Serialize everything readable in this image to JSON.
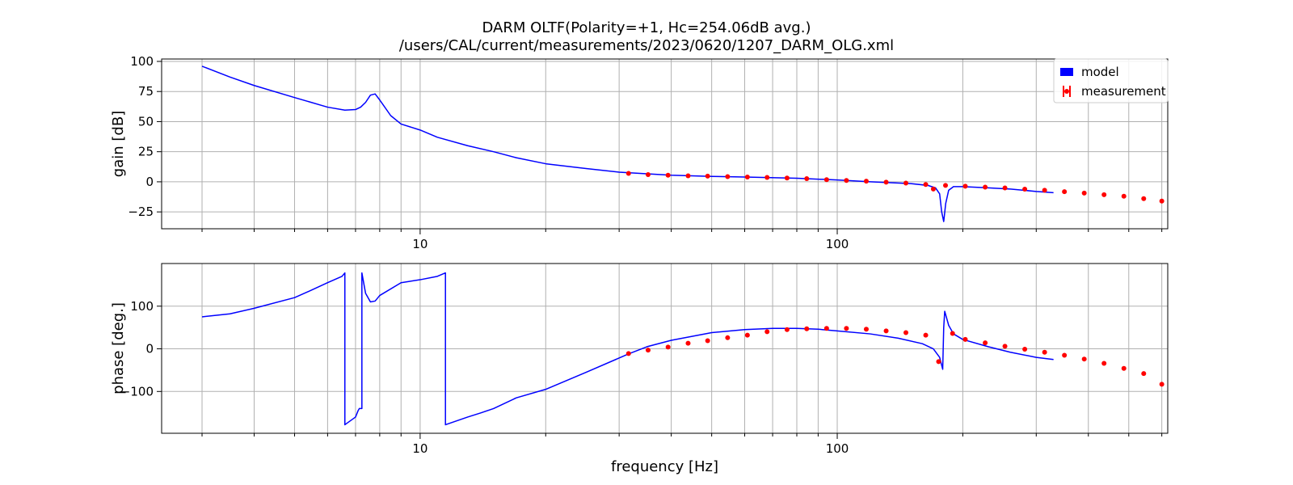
{
  "chart_data": {
    "title": "DARM OLTF(Polarity=+1,  Hc=254.06dB avg.)",
    "subtitle": "/users/CAL/current/measurements/2023/0620/1207_DARM_OLG.xml",
    "xlabel": "frequency [Hz]",
    "xscale": "log",
    "xlim": [
      2.4,
      620
    ],
    "x_major_ticks": [
      10,
      100
    ],
    "x_tick_labels": [
      "10",
      "100"
    ],
    "grid": true,
    "legend": {
      "placement": "top-right",
      "entries": [
        {
          "label": "model",
          "color": "#0000ff",
          "marker": "patch"
        },
        {
          "label": "measurement",
          "color": "#ff0000",
          "marker": "errorbar-point"
        }
      ]
    },
    "panels": [
      {
        "id": "gain",
        "type": "line",
        "ylabel": "gain [dB]",
        "ylim": [
          -39,
          102
        ],
        "yticks": [
          100,
          75,
          50,
          25,
          0,
          -25
        ],
        "ytick_labels": [
          "100",
          "75",
          "50",
          "25",
          "0",
          "−25"
        ],
        "series": [
          {
            "name": "model",
            "type": "line",
            "color": "#0000ff",
            "x": [
              3.0,
              3.5,
              4.0,
              5.0,
              6.0,
              6.6,
              7.0,
              7.2,
              7.4,
              7.6,
              7.8,
              8.0,
              8.5,
              9.0,
              10.0,
              11.0,
              13.0,
              15.0,
              17.0,
              20.0,
              25.0,
              30.0,
              40.0,
              50.0,
              60.0,
              80.0,
              100.0,
              120.0,
              150.0,
              165.0,
              172.0,
              176.0,
              178.0,
              180.0,
              182.0,
              185.0,
              190.0,
              200.0,
              230.0,
              260.0,
              300.0,
              330.0
            ],
            "y": [
              96.0,
              87.0,
              80.0,
              70.0,
              62.0,
              59.5,
              60.0,
              62.0,
              66.0,
              72.0,
              73.0,
              68.0,
              55.0,
              48.0,
              43.0,
              37.0,
              30.0,
              25.0,
              20.0,
              15.0,
              11.0,
              8.0,
              5.5,
              4.5,
              4.0,
              3.0,
              1.5,
              0.0,
              -1.5,
              -3.0,
              -5.0,
              -10.0,
              -25.0,
              -33.0,
              -18.0,
              -7.0,
              -4.0,
              -4.0,
              -5.0,
              -6.0,
              -8.0,
              -9.0
            ]
          },
          {
            "name": "measurement",
            "type": "scatter",
            "color": "#ff0000",
            "x": [
              31.6,
              35.2,
              39.3,
              43.9,
              48.9,
              54.6,
              60.9,
              67.9,
              75.8,
              84.5,
              94.3,
              105.2,
              117.4,
              131.0,
              146.1,
              163.0,
              170.0,
              181.8,
              202.8,
              226.3,
              252.4,
              281.6,
              314.2,
              350.5,
              391.0,
              436.2,
              486.7,
              543.0,
              600.0
            ],
            "y": [
              7.0,
              6.0,
              5.5,
              5.0,
              4.7,
              4.3,
              4.0,
              3.6,
              3.1,
              2.6,
              1.8,
              1.1,
              0.5,
              -0.3,
              -1.1,
              -2.2,
              -6.0,
              -3.0,
              -3.7,
              -4.4,
              -5.1,
              -6.1,
              -7.0,
              -8.2,
              -9.4,
              -10.7,
              -12.0,
              -14.0,
              -16.0
            ]
          }
        ]
      },
      {
        "id": "phase",
        "type": "line",
        "ylabel": "phase [deg.]",
        "ylim": [
          -198,
          200
        ],
        "yticks": [
          100,
          0,
          -100
        ],
        "ytick_labels": [
          "100",
          "0",
          "−100"
        ],
        "series": [
          {
            "name": "model",
            "type": "line",
            "color": "#0000ff",
            "x": [
              3.0,
              3.5,
              4.0,
              5.0,
              5.5,
              6.0,
              6.5,
              6.6,
              6.6,
              7.0,
              7.1,
              7.15,
              7.25,
              7.25,
              7.4,
              7.6,
              7.8,
              8.0,
              9.0,
              10.0,
              11.0,
              11.5,
              11.5,
              13.0,
              14.0,
              15.0,
              17.0,
              20.0,
              25.0,
              31.6,
              35.0,
              40.0,
              50.0,
              60.0,
              70.0,
              80.0,
              90.0,
              100.0,
              120.0,
              140.0,
              160.0,
              170.0,
              176.0,
              179.0,
              180.0,
              181.0,
              185.0,
              190.0,
              200.0,
              230.0,
              260.0,
              300.0,
              330.0
            ],
            "y": [
              75.0,
              82.0,
              95.0,
              120.0,
              138.0,
              155.0,
              170.0,
              178.0,
              -178.0,
              -160.0,
              -145.0,
              -140.0,
              -140.0,
              178.0,
              130.0,
              110.0,
              112.0,
              125.0,
              155.0,
              162.0,
              170.0,
              178.0,
              -178.0,
              -160.0,
              -150.0,
              -140.0,
              -115.0,
              -95.0,
              -55.0,
              -12.0,
              5.0,
              20.0,
              38.0,
              45.0,
              48.0,
              48.0,
              46.0,
              42.0,
              35.0,
              25.0,
              12.0,
              0.0,
              -20.0,
              -48.0,
              50.0,
              88.0,
              55.0,
              35.0,
              22.0,
              5.0,
              -8.0,
              -20.0,
              -25.0
            ]
          },
          {
            "name": "measurement",
            "type": "scatter",
            "color": "#ff0000",
            "x": [
              31.6,
              35.2,
              39.3,
              43.9,
              48.9,
              54.6,
              60.9,
              67.9,
              75.8,
              84.5,
              94.3,
              105.2,
              117.4,
              131.0,
              146.1,
              163.0,
              175.0,
              189.0,
              202.8,
              226.3,
              252.4,
              281.6,
              314.2,
              350.5,
              391.0,
              436.2,
              486.7,
              543.0,
              600.0
            ],
            "y": [
              -11.0,
              -3.0,
              4.0,
              13.0,
              19.0,
              26.0,
              32.0,
              40.0,
              45.0,
              47.0,
              48.0,
              48.0,
              46.0,
              42.0,
              38.0,
              32.0,
              -30.0,
              36.0,
              22.0,
              14.0,
              6.0,
              -1.0,
              -8.0,
              -15.0,
              -24.0,
              -34.0,
              -46.0,
              -58.0,
              -83.0
            ]
          }
        ]
      }
    ]
  }
}
